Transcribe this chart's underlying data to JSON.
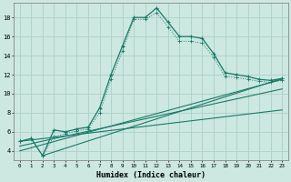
{
  "xlabel": "Humidex (Indice chaleur)",
  "ylabel": "",
  "background_color": "#cce8e0",
  "grid_color": "#b0d4cc",
  "line_color": "#1a7a6a",
  "xlim": [
    -0.5,
    23.5
  ],
  "ylim": [
    3.0,
    19.5
  ],
  "xticks": [
    0,
    1,
    2,
    3,
    4,
    5,
    6,
    7,
    8,
    9,
    10,
    11,
    12,
    13,
    14,
    15,
    16,
    17,
    18,
    19,
    20,
    21,
    22,
    23
  ],
  "yticks": [
    4,
    6,
    8,
    10,
    12,
    14,
    16,
    18
  ],
  "curve1_x": [
    0,
    1,
    2,
    3,
    4,
    5,
    6,
    7,
    8,
    9,
    10,
    11,
    12,
    13,
    14,
    15,
    16,
    17,
    18,
    19,
    20,
    21,
    22,
    23
  ],
  "curve1_y": [
    5.0,
    5.3,
    3.5,
    6.2,
    6.0,
    6.3,
    6.5,
    8.5,
    12.0,
    15.0,
    18.0,
    18.0,
    19.0,
    17.5,
    16.0,
    16.0,
    15.8,
    14.2,
    12.2,
    12.0,
    11.8,
    11.5,
    11.4,
    11.6
  ],
  "curve2_x": [
    0,
    1,
    2,
    3,
    4,
    5,
    6,
    7,
    8,
    9,
    10,
    11,
    12,
    13,
    14,
    15,
    16,
    17,
    18,
    19,
    20,
    21,
    22,
    23
  ],
  "curve2_y": [
    5.0,
    5.3,
    3.5,
    5.5,
    5.8,
    6.1,
    6.3,
    8.0,
    11.5,
    14.5,
    17.8,
    17.8,
    18.5,
    17.0,
    15.5,
    15.5,
    15.3,
    13.8,
    11.8,
    11.7,
    11.5,
    11.3,
    11.2,
    11.4
  ],
  "line1_x": [
    0,
    23
  ],
  "line1_y": [
    5.0,
    8.3
  ],
  "line2_x": [
    0,
    23
  ],
  "line2_y": [
    4.5,
    10.5
  ],
  "line3_x": [
    0,
    23
  ],
  "line3_y": [
    4.0,
    11.5
  ],
  "line4_x": [
    2,
    23
  ],
  "line4_y": [
    3.5,
    11.6
  ]
}
